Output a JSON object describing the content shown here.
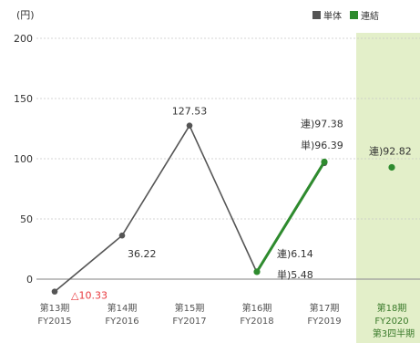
{
  "chart_data": {
    "type": "line",
    "title": "",
    "unit_label": "(円)",
    "ylim": [
      0,
      200
    ],
    "yticks": [
      0,
      50,
      100,
      150,
      200
    ],
    "grid": true,
    "legend_position": "top-right",
    "categories": [
      {
        "period": "第13期",
        "fy": "FY2015"
      },
      {
        "period": "第14期",
        "fy": "FY2016"
      },
      {
        "period": "第15期",
        "fy": "FY2017"
      },
      {
        "period": "第16期",
        "fy": "FY2018"
      },
      {
        "period": "第17期",
        "fy": "FY2019"
      },
      {
        "period": "第18期",
        "fy": "FY2020",
        "note": "第3四半期"
      }
    ],
    "series": [
      {
        "name": "単体",
        "color": "#555555",
        "values": [
          -10.33,
          36.22,
          127.53,
          5.48,
          96.39,
          null
        ],
        "labels": [
          "△10.33",
          "36.22",
          "127.53",
          "単)5.48",
          "単)96.39",
          ""
        ]
      },
      {
        "name": "連結",
        "color": "#2e8b2e",
        "values": [
          null,
          null,
          null,
          6.14,
          97.38,
          92.82
        ],
        "labels": [
          "",
          "",
          "",
          "連)6.14",
          "連)97.38",
          "連)92.82"
        ]
      }
    ],
    "negative_color": "#e8383d",
    "highlight_category_index": 5,
    "highlight_color": "#e3efc9"
  }
}
